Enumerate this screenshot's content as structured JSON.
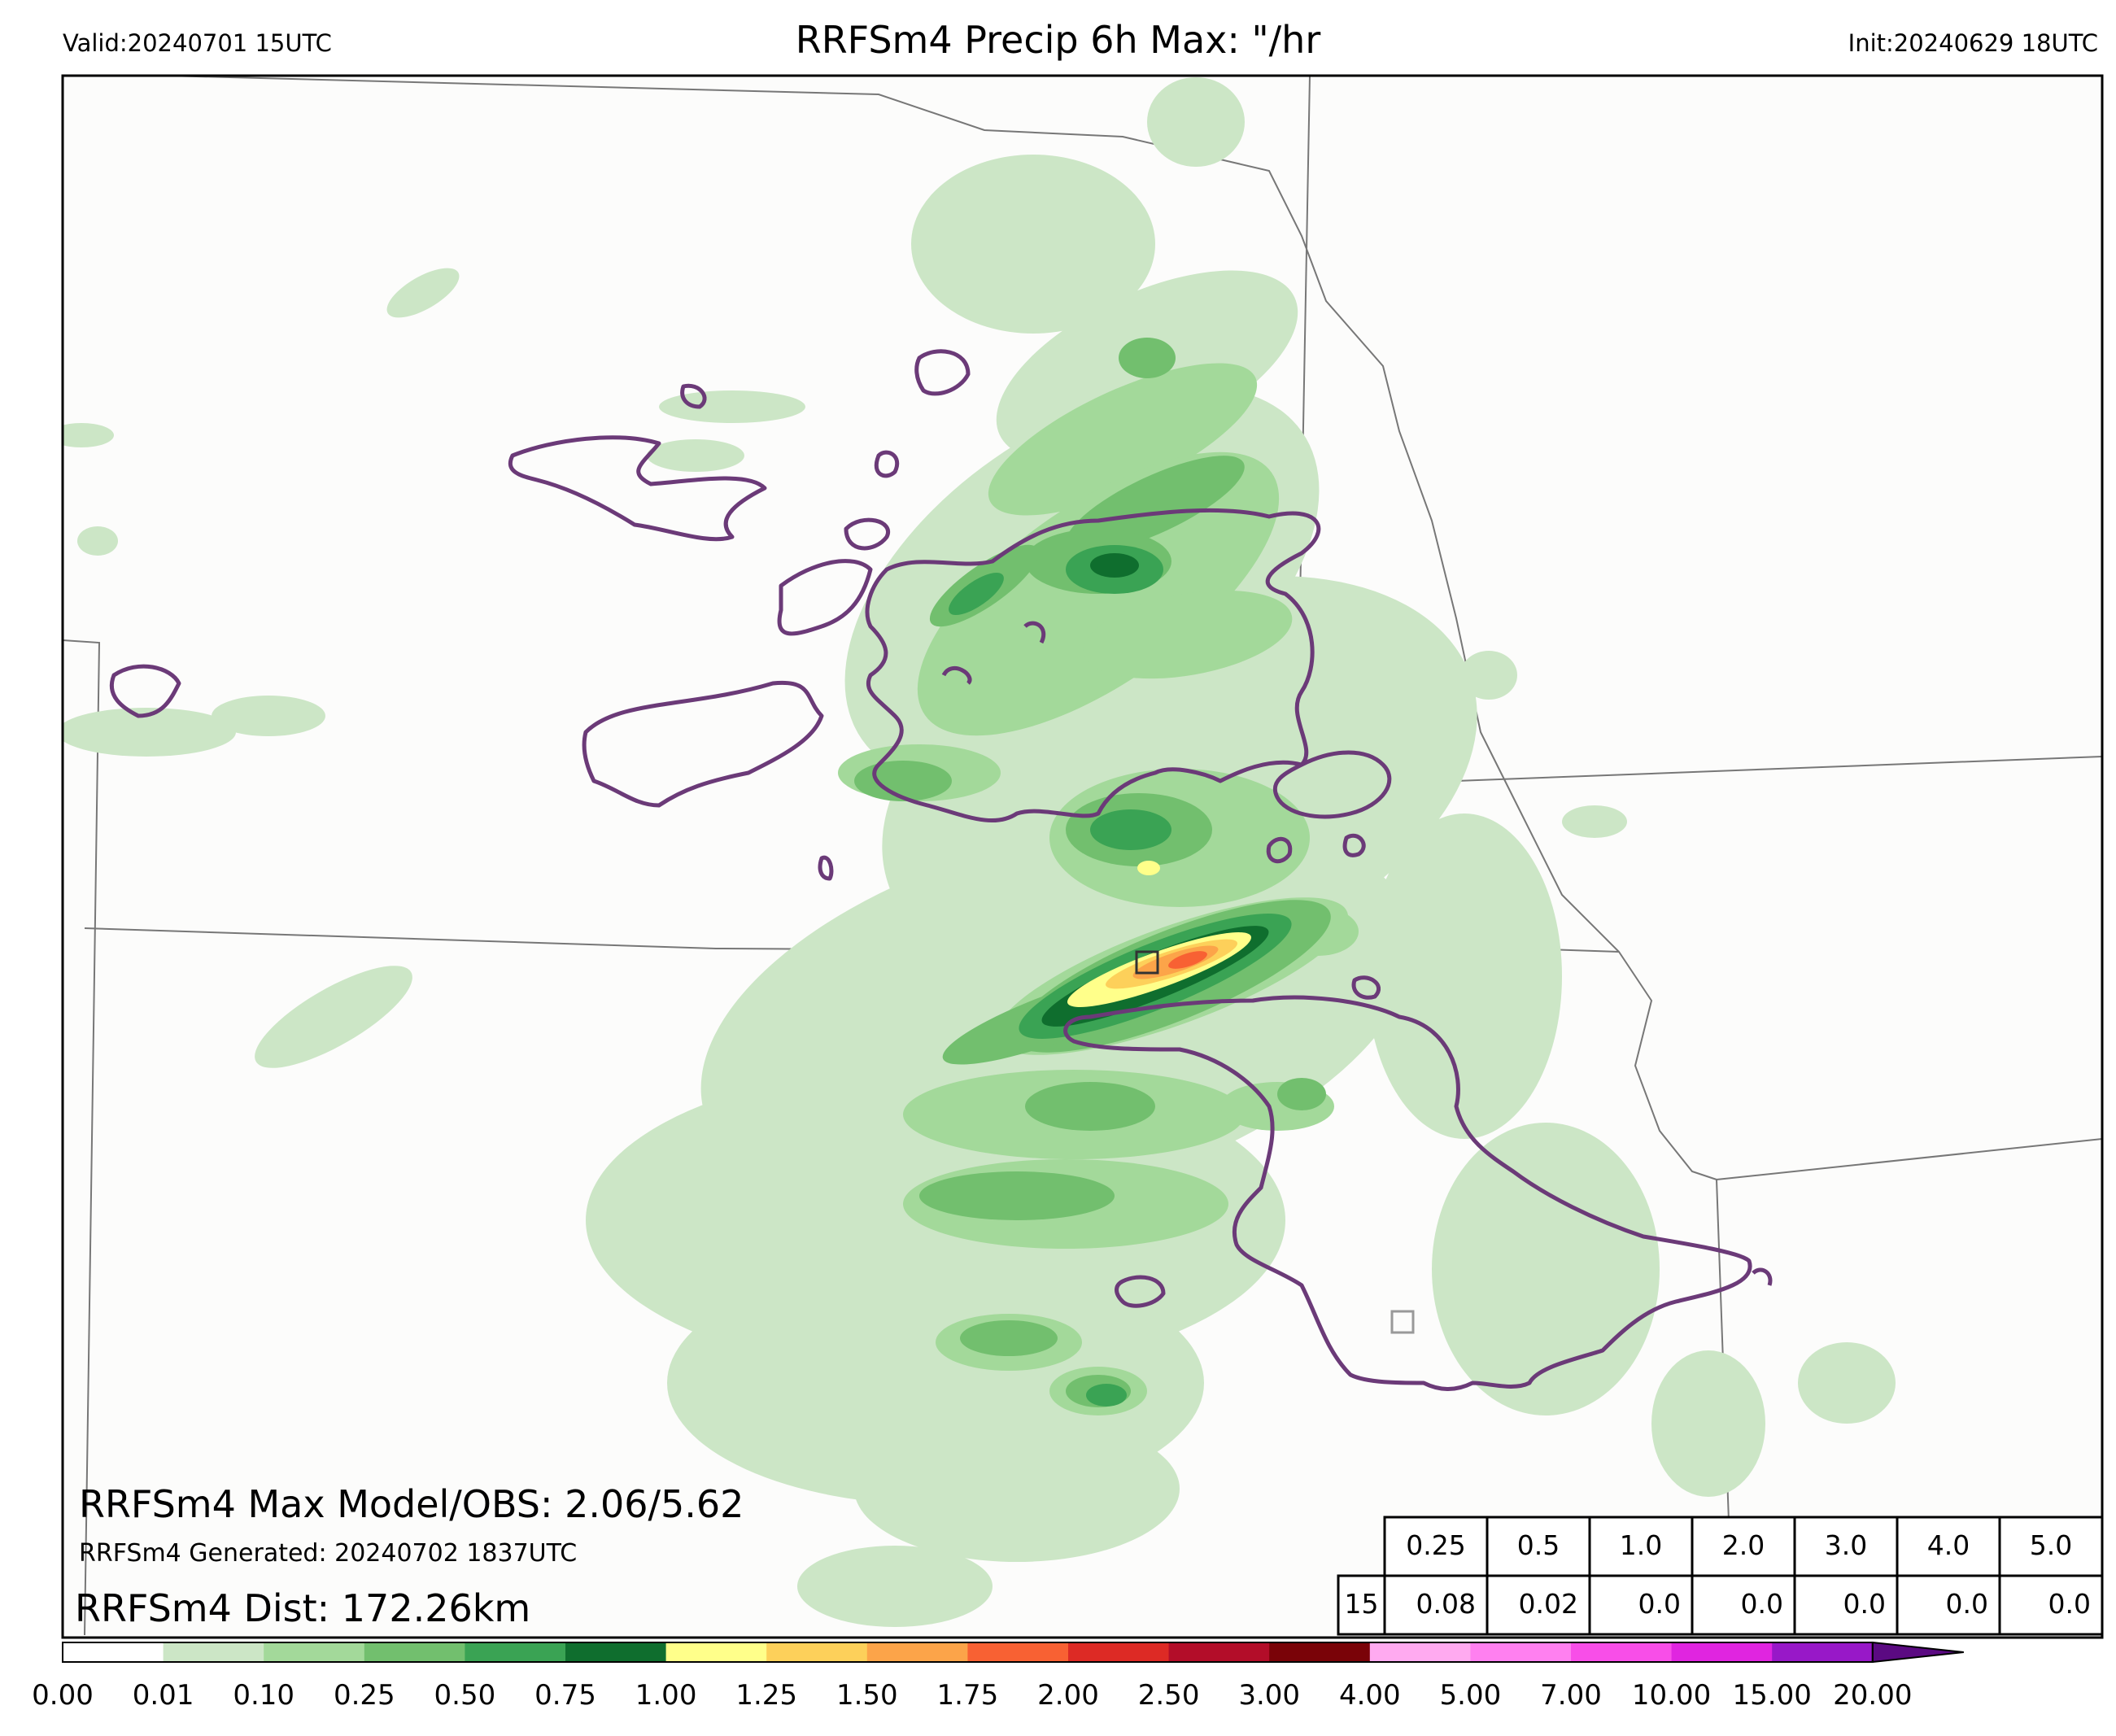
{
  "header": {
    "valid": "Valid:20240701 15UTC",
    "title": "RRFSm4 Precip 6h Max: \"/hr",
    "init": "Init:20240629 18UTC"
  },
  "annotations": {
    "max_model_obs": "RRFSm4 Max Model/OBS: 2.06/5.62",
    "generated": "RRFSm4 Generated: 20240702 1837UTC",
    "dist": "RRFSm4 Dist: 172.26km"
  },
  "colors": {
    "light_green": "#cce6c6",
    "mid_green": "#a3d99a",
    "green": "#72bf6e",
    "dark_green": "#3aa354",
    "darkest_green": "#0f6e2e",
    "yellow": "#ffff8a",
    "outline_purple": "#6b3a78",
    "border_gray": "#777777"
  },
  "chart_data": {
    "type": "heatmap",
    "title": "RRFSm4 Precip 6h Max: \"/hr",
    "colorbar": {
      "ticks": [
        "0.00",
        "0.01",
        "0.10",
        "0.25",
        "0.50",
        "0.75",
        "1.00",
        "1.25",
        "1.50",
        "1.75",
        "2.00",
        "2.50",
        "3.00",
        "4.00",
        "5.00",
        "7.00",
        "10.00",
        "15.00",
        "20.00"
      ],
      "colors": [
        "#ffffff",
        "#cce6c6",
        "#a3d99a",
        "#72bf6e",
        "#3aa354",
        "#0f6e2e",
        "#ffff8a",
        "#fdd05a",
        "#fca449",
        "#f86133",
        "#dd2a25",
        "#b30d29",
        "#7a0308",
        "#ffaaf0",
        "#ff80f0",
        "#f84ee8",
        "#e025e0",
        "#9818c8",
        "#5b0a82"
      ]
    },
    "max_model": 2.06,
    "max_obs": 5.62,
    "distance_km": 172.26,
    "table": {
      "thresholds": [
        "0.25",
        "0.5",
        "1.0",
        "2.0",
        "3.0",
        "4.0",
        "5.0"
      ],
      "row_label": "15",
      "values": [
        "0.08",
        "0.02",
        "0.0",
        "0.0",
        "0.0",
        "0.0",
        "0.0"
      ]
    }
  }
}
